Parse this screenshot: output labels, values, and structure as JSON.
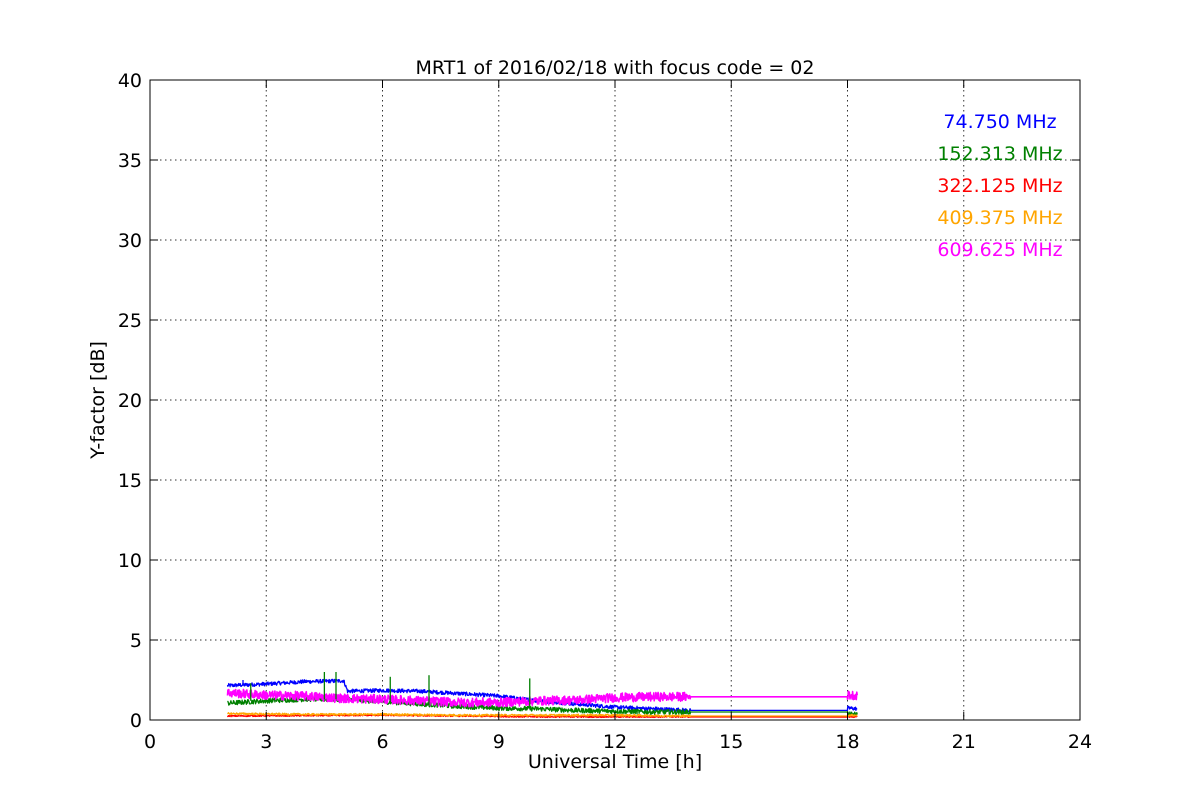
{
  "chart_data": {
    "type": "line",
    "title": "MRT1 of 2016/02/18 with focus code = 02",
    "xlabel": "Universal Time [h]",
    "ylabel": "Y-factor [dB]",
    "xlim": [
      0,
      24
    ],
    "ylim": [
      0,
      40
    ],
    "xticks": [
      0,
      3,
      6,
      9,
      12,
      15,
      18,
      21,
      24
    ],
    "yticks": [
      0,
      5,
      10,
      15,
      20,
      25,
      30,
      35,
      40
    ],
    "xtick_labels": [
      "0",
      "3",
      "6",
      "9",
      "12",
      "15",
      "18",
      "21",
      "24"
    ],
    "ytick_labels": [
      "0",
      "5",
      "10",
      "15",
      "20",
      "25",
      "30",
      "35",
      "40"
    ],
    "grid": true,
    "legend_placement": "top-right",
    "series": [
      {
        "name": "74.750 MHz",
        "color": "#0000ff",
        "noise": 0.12,
        "points": [
          [
            2.0,
            2.15
          ],
          [
            3.0,
            2.25
          ],
          [
            4.0,
            2.4
          ],
          [
            5.0,
            2.45
          ],
          [
            5.1,
            1.8
          ],
          [
            6.0,
            1.85
          ],
          [
            7.0,
            1.8
          ],
          [
            8.0,
            1.65
          ],
          [
            9.0,
            1.5
          ],
          [
            10.0,
            1.2
          ],
          [
            11.0,
            1.0
          ],
          [
            12.0,
            0.8
          ],
          [
            13.0,
            0.7
          ],
          [
            13.95,
            0.6
          ],
          [
            18.0,
            0.6
          ],
          [
            18.0,
            0.75
          ],
          [
            18.25,
            0.7
          ]
        ]
      },
      {
        "name": "152.313 MHz",
        "color": "#008000",
        "noise": 0.15,
        "points": [
          [
            2.0,
            1.05
          ],
          [
            3.0,
            1.2
          ],
          [
            4.0,
            1.3
          ],
          [
            5.0,
            1.3
          ],
          [
            6.0,
            1.15
          ],
          [
            7.0,
            1.0
          ],
          [
            8.0,
            0.85
          ],
          [
            9.0,
            0.75
          ],
          [
            10.0,
            0.7
          ],
          [
            11.0,
            0.6
          ],
          [
            12.0,
            0.55
          ],
          [
            13.0,
            0.5
          ],
          [
            13.95,
            0.5
          ],
          [
            18.0,
            0.5
          ],
          [
            18.0,
            0.35
          ],
          [
            18.25,
            0.35
          ]
        ]
      },
      {
        "name": "322.125 MHz",
        "color": "#ff0000",
        "noise": 0.04,
        "points": [
          [
            2.0,
            0.25
          ],
          [
            6.0,
            0.3
          ],
          [
            10.0,
            0.2
          ],
          [
            13.95,
            0.2
          ],
          [
            18.0,
            0.2
          ],
          [
            18.25,
            0.2
          ]
        ]
      },
      {
        "name": "409.375 MHz",
        "color": "#ffa500",
        "noise": 0.06,
        "points": [
          [
            2.0,
            0.4
          ],
          [
            4.0,
            0.35
          ],
          [
            6.0,
            0.35
          ],
          [
            8.0,
            0.3
          ],
          [
            10.0,
            0.3
          ],
          [
            12.0,
            0.3
          ],
          [
            13.95,
            0.25
          ],
          [
            18.0,
            0.25
          ],
          [
            18.0,
            0.3
          ],
          [
            18.25,
            0.3
          ]
        ]
      },
      {
        "name": "609.625 MHz",
        "color": "#ff00ff",
        "noise": 0.28,
        "points": [
          [
            2.0,
            1.7
          ],
          [
            3.0,
            1.55
          ],
          [
            4.0,
            1.5
          ],
          [
            5.0,
            1.35
          ],
          [
            6.0,
            1.3
          ],
          [
            7.0,
            1.2
          ],
          [
            8.0,
            1.1
          ],
          [
            9.0,
            1.1
          ],
          [
            10.0,
            1.2
          ],
          [
            11.0,
            1.25
          ],
          [
            12.0,
            1.4
          ],
          [
            13.0,
            1.45
          ],
          [
            13.95,
            1.45
          ],
          [
            18.0,
            1.45
          ],
          [
            18.0,
            1.55
          ],
          [
            18.25,
            1.55
          ]
        ]
      }
    ],
    "spikes": [
      {
        "series": 1,
        "x": 2.6,
        "y": 2.3
      },
      {
        "series": 1,
        "x": 4.5,
        "y": 3.0
      },
      {
        "series": 1,
        "x": 4.8,
        "y": 3.0
      },
      {
        "series": 1,
        "x": 6.2,
        "y": 2.7
      },
      {
        "series": 1,
        "x": 7.2,
        "y": 2.8
      },
      {
        "series": 1,
        "x": 9.8,
        "y": 2.6
      },
      {
        "series": 0,
        "x": 2.4,
        "y": 2.5
      }
    ]
  }
}
